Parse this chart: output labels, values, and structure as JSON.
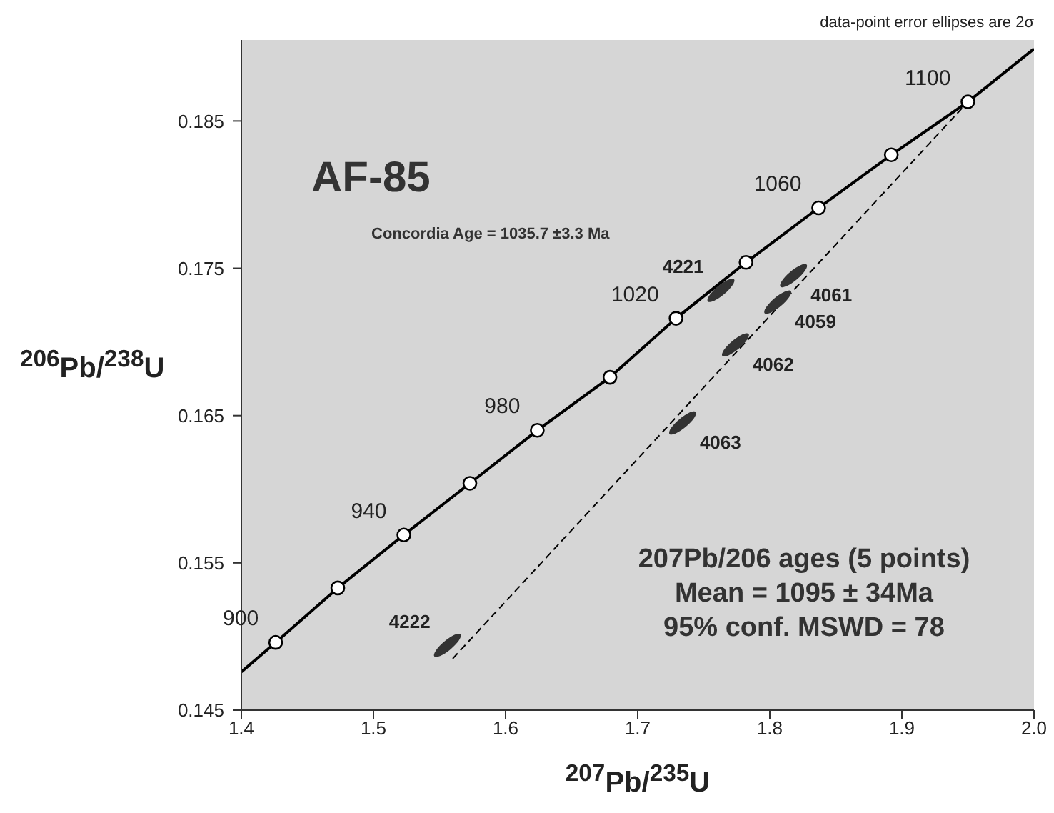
{
  "chart_data": {
    "type": "scatter",
    "title": "AF-85",
    "xlabel": "$^{207}$Pb/$^{235}$U",
    "ylabel": "$^{206}$Pb/$^{238}$U",
    "xlim": [
      1.4,
      2.0
    ],
    "xticks": [
      {
        "value": 1.4,
        "label": "1.4"
      },
      1.5,
      1.6,
      1.7,
      1.8,
      1.9,
      {
        "value": 2.0,
        "label": "2.0"
      }
    ],
    "ylim": [
      0.145,
      0.1905
    ],
    "yticks": [
      0.145,
      0.155,
      0.165,
      0.175,
      0.185
    ],
    "grid": false,
    "annotations": [
      "data-point error ellipses are 2σ",
      "Concordia Age = 1035.7 ±3.3 Ma",
      "207Pb/206 ages (5 points)\nMean = 1095 ± 34Ma\n95% conf.  MSWD = 78",
      {
        "text": "900",
        "x": 1.426,
        "y": 0.1496
      },
      {
        "text": "940",
        "x": 1.523,
        "y": 0.1569
      },
      {
        "text": "980",
        "x": 1.624,
        "y": 0.164
      },
      {
        "text": "1020",
        "x": 1.729,
        "y": 0.1716
      },
      {
        "text": "1060",
        "x": 1.837,
        "y": 0.1791
      },
      {
        "text": "1100",
        "x": 1.95,
        "y": 0.1863
      },
      {
        "text": "4222",
        "x": 1.556,
        "y": 0.1494
      },
      {
        "text": "4063",
        "x": 1.734,
        "y": 0.1645
      },
      {
        "text": "4062",
        "x": 1.774,
        "y": 0.1698
      },
      {
        "text": "4059",
        "x": 1.806,
        "y": 0.1727
      },
      {
        "text": "4061",
        "x": 1.818,
        "y": 0.1745
      },
      {
        "text": "4221",
        "x": 1.763,
        "y": 0.1735
      }
    ],
    "series": [
      {
        "type": "line",
        "color": "#000000",
        "marker": "none",
        "line_style": "solid",
        "x": [
          1.4,
          1.426,
          1.473,
          1.523,
          1.573,
          1.624,
          1.679,
          1.729,
          1.782,
          1.837,
          1.892,
          1.95,
          2.0
        ],
        "values": [
          0.1476,
          0.1496,
          0.1533,
          0.1569,
          0.1604,
          0.164,
          0.1676,
          0.1716,
          0.1754,
          0.1791,
          0.1827,
          0.1863,
          0.1899
        ]
      },
      {
        "type": "line",
        "color": "#000000",
        "marker": "none",
        "line_style": "dashed",
        "x": [
          1.56,
          1.95
        ],
        "values": [
          0.1485,
          0.1863
        ]
      },
      {
        "color": "#000000",
        "marker": "circle",
        "x": [
          1.426,
          1.473,
          1.523,
          1.573,
          1.624,
          1.679,
          1.729,
          1.782,
          1.837,
          1.892,
          1.95
        ],
        "values": [
          0.1496,
          0.1533,
          0.1569,
          0.1604,
          0.164,
          0.1676,
          0.1716,
          0.1754,
          0.1791,
          0.1827,
          0.1863
        ]
      },
      {
        "color": "#333333",
        "x": [
          1.556,
          1.734,
          1.774,
          1.806,
          1.818,
          1.763
        ],
        "values": [
          0.1494,
          0.1645,
          0.1698,
          0.1727,
          0.1745,
          0.1735
        ]
      }
    ]
  }
}
